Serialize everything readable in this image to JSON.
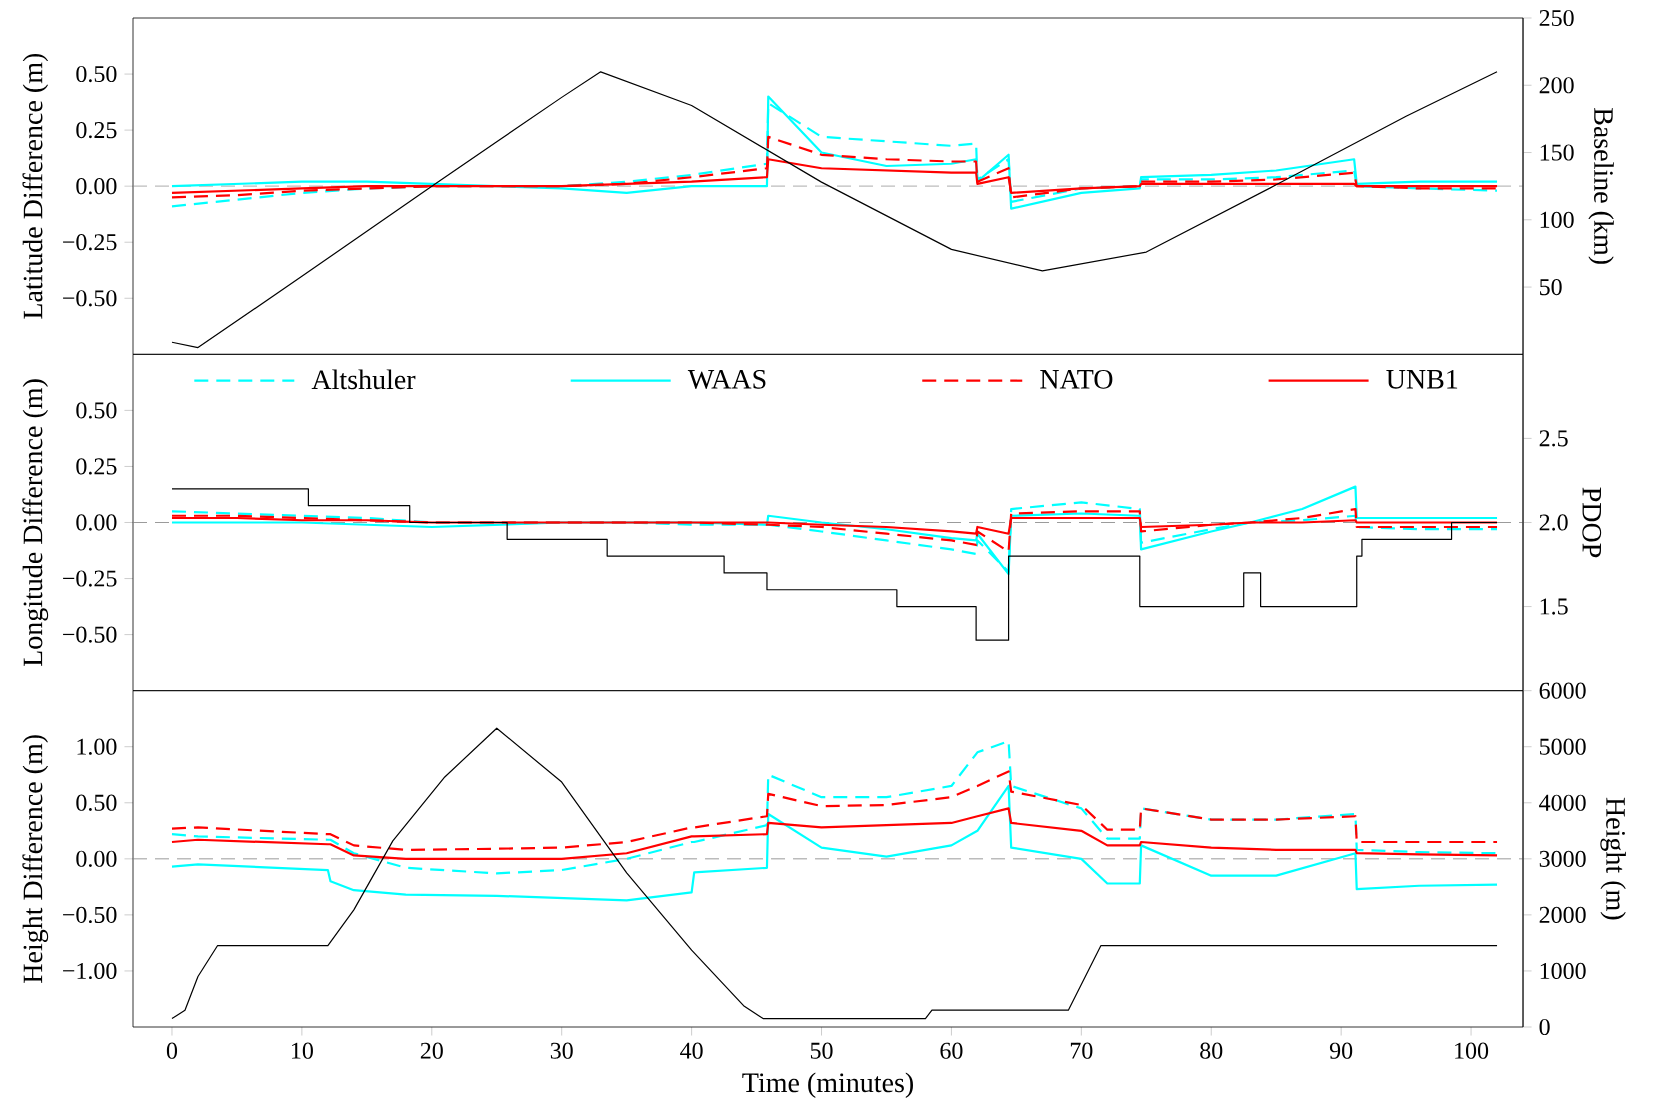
{
  "chart_data": [
    {
      "type": "line",
      "ylabel": "Latitude Difference (m)",
      "y2label": "Baseline (km)",
      "tick_labels": "y",
      "xlim": [
        -3,
        104
      ],
      "ylim": [
        -0.75,
        0.75
      ],
      "yticks": [
        {
          "value": -0.5,
          "label": "−0.50"
        },
        {
          "value": -0.25,
          "label": "−0.25"
        },
        {
          "value": 0,
          "label": "0.00"
        },
        {
          "value": 0.25,
          "label": "0.25"
        },
        {
          "value": 0.5,
          "label": "0.50"
        }
      ],
      "y2lim": [
        0,
        250
      ],
      "y2ticks": [
        50,
        100,
        150,
        200,
        250
      ],
      "ref_lines": [
        {
          "axis": "y",
          "value": 0,
          "color": "#808080",
          "line_style": "dashed"
        }
      ],
      "series": [
        {
          "color": "#00ffff",
          "line_style": "dashed",
          "x": [
            0,
            5,
            10,
            15,
            20,
            25,
            30,
            35,
            40,
            45.8,
            45.9,
            50,
            55,
            60,
            61.9,
            62,
            64.4,
            64.6,
            70,
            74.5,
            74.6,
            80,
            85,
            91,
            91.2,
            96,
            102
          ],
          "values": [
            -0.09,
            -0.06,
            -0.03,
            -0.01,
            0,
            0,
            0,
            0.02,
            0.05,
            0.1,
            0.37,
            0.22,
            0.2,
            0.18,
            0.19,
            0.03,
            0.12,
            -0.07,
            -0.01,
            0,
            0.03,
            0.03,
            0.04,
            0.07,
            0,
            -0.01,
            -0.02
          ]
        },
        {
          "color": "#00ffff",
          "line_style": "solid",
          "x": [
            0,
            5,
            10,
            15,
            20,
            25,
            30,
            35,
            40,
            45.8,
            45.9,
            50,
            55,
            60,
            61.9,
            62,
            64.4,
            64.6,
            70,
            74.5,
            74.6,
            80,
            85,
            91,
            91.2,
            96,
            102
          ],
          "values": [
            0,
            0.01,
            0.02,
            0.02,
            0.01,
            0,
            -0.01,
            -0.03,
            0,
            0,
            0.4,
            0.15,
            0.09,
            0.1,
            0.12,
            0.02,
            0.14,
            -0.1,
            -0.03,
            -0.01,
            0.04,
            0.05,
            0.07,
            0.12,
            0.01,
            0.02,
            0.02
          ]
        },
        {
          "color": "#ff0000",
          "line_style": "dashed",
          "x": [
            0,
            5,
            10,
            15,
            20,
            25,
            30,
            35,
            40,
            45.8,
            45.9,
            50,
            55,
            60,
            61.9,
            62,
            64.4,
            64.6,
            70,
            74.5,
            74.6,
            80,
            85,
            91,
            91.2,
            96,
            102
          ],
          "values": [
            -0.05,
            -0.04,
            -0.02,
            -0.01,
            0,
            0,
            0,
            0.01,
            0.04,
            0.08,
            0.22,
            0.14,
            0.12,
            0.11,
            0.11,
            0.02,
            0.08,
            -0.05,
            -0.01,
            0,
            0.02,
            0.02,
            0.03,
            0.06,
            0,
            -0.01,
            -0.01
          ]
        },
        {
          "color": "#ff0000",
          "line_style": "solid",
          "x": [
            0,
            5,
            10,
            15,
            20,
            25,
            30,
            35,
            40,
            45.8,
            45.9,
            50,
            55,
            60,
            61.9,
            62,
            64.4,
            64.6,
            70,
            74.5,
            74.6,
            80,
            85,
            91,
            91.2,
            96,
            102
          ],
          "values": [
            -0.03,
            -0.02,
            -0.01,
            0,
            0,
            0,
            0,
            0.01,
            0.02,
            0.04,
            0.12,
            0.08,
            0.07,
            0.06,
            0.06,
            0.01,
            0.04,
            -0.03,
            -0.01,
            0,
            0.01,
            0.01,
            0.01,
            0.01,
            0,
            0,
            0
          ]
        },
        {
          "color": "#000000",
          "line_style": "solid",
          "axis": "y2",
          "x": [
            0,
            2,
            10,
            20,
            25,
            30,
            33,
            40,
            50,
            60,
            67,
            75,
            85,
            95,
            102
          ],
          "values": [
            9,
            5,
            58,
            125,
            158,
            191,
            210,
            185,
            128,
            78,
            62,
            76,
            126,
            177,
            210
          ]
        }
      ]
    },
    {
      "type": "line",
      "ylabel": "Longitude Difference (m)",
      "y2label": "PDOP",
      "tick_labels": "y",
      "legend": "top",
      "xlim": [
        -3,
        104
      ],
      "ylim": [
        -0.75,
        0.75
      ],
      "yticks": [
        {
          "value": -0.5,
          "label": "−0.50"
        },
        {
          "value": -0.25,
          "label": "−0.25"
        },
        {
          "value": 0,
          "label": "0.00"
        },
        {
          "value": 0.25,
          "label": "0.25"
        },
        {
          "value": 0.5,
          "label": "0.50"
        }
      ],
      "y2lim": [
        1,
        3
      ],
      "y2ticks": [
        1.5,
        {
          "value": 2,
          "label": "2.0"
        },
        2.5
      ],
      "ref_lines": [
        {
          "axis": "y",
          "value": 0,
          "color": "#808080",
          "line_style": "dashed"
        }
      ],
      "series": [
        {
          "name": "Altshuler",
          "color": "#00ffff",
          "line_style": "dashed",
          "x": [
            0,
            5,
            10,
            15,
            20,
            25,
            30,
            35,
            40,
            45.8,
            45.9,
            50,
            55,
            60,
            61.9,
            62,
            64.4,
            64.6,
            70,
            74.5,
            74.6,
            80,
            83,
            87,
            91.1,
            91.2,
            96,
            102
          ],
          "values": [
            0.05,
            0.04,
            0.03,
            0.02,
            0,
            0,
            0,
            0,
            -0.01,
            -0.01,
            -0.01,
            -0.04,
            -0.08,
            -0.12,
            -0.14,
            -0.08,
            -0.22,
            0.06,
            0.09,
            0.06,
            -0.09,
            -0.03,
            0,
            0.01,
            0.03,
            -0.02,
            -0.03,
            -0.03
          ]
        },
        {
          "name": "WAAS",
          "color": "#00ffff",
          "line_style": "solid",
          "x": [
            0,
            5,
            10,
            15,
            20,
            25,
            30,
            35,
            40,
            45.8,
            45.9,
            50,
            55,
            60,
            61.9,
            62,
            64.4,
            64.6,
            70,
            74.5,
            74.6,
            80,
            83,
            87,
            91.1,
            91.2,
            96,
            102
          ],
          "values": [
            0,
            0,
            0,
            -0.01,
            -0.02,
            -0.01,
            0,
            0,
            0,
            -0.01,
            0.03,
            0,
            -0.03,
            -0.07,
            -0.08,
            -0.05,
            -0.23,
            0.03,
            0.04,
            0.03,
            -0.12,
            -0.04,
            0,
            0.06,
            0.16,
            0.02,
            0.02,
            0.02
          ]
        },
        {
          "name": "NATO",
          "color": "#ff0000",
          "line_style": "dashed",
          "x": [
            0,
            5,
            10,
            15,
            20,
            25,
            30,
            35,
            40,
            45.8,
            45.9,
            50,
            55,
            60,
            61.9,
            62,
            64.4,
            64.6,
            70,
            74.5,
            74.6,
            80,
            83,
            87,
            91.1,
            91.2,
            96,
            102
          ],
          "values": [
            0.03,
            0.03,
            0.02,
            0.01,
            0,
            0,
            0,
            0,
            0,
            -0.01,
            -0.01,
            -0.02,
            -0.05,
            -0.08,
            -0.1,
            -0.04,
            -0.13,
            0.04,
            0.05,
            0.05,
            -0.04,
            -0.01,
            0,
            0.02,
            0.06,
            -0.02,
            -0.02,
            -0.02
          ]
        },
        {
          "name": "UNB1",
          "color": "#ff0000",
          "line_style": "solid",
          "x": [
            0,
            5,
            10,
            15,
            20,
            25,
            30,
            35,
            40,
            45.8,
            45.9,
            50,
            55,
            60,
            61.9,
            62,
            64.4,
            64.6,
            70,
            74.5,
            74.6,
            80,
            83,
            87,
            91.1,
            91.2,
            96,
            102
          ],
          "values": [
            0.02,
            0.02,
            0.01,
            0.01,
            0,
            0,
            0,
            0,
            0,
            0,
            0,
            -0.01,
            -0.02,
            -0.04,
            -0.05,
            -0.02,
            -0.05,
            0.02,
            0.02,
            0.02,
            -0.02,
            -0.01,
            0,
            0,
            0.01,
            0,
            0,
            0
          ]
        },
        {
          "type": "step",
          "color": "#000000",
          "line_style": "solid",
          "axis": "y2",
          "x": [
            0,
            10.5,
            18.3,
            25.8,
            33.5,
            42.5,
            45.8,
            55.8,
            61.9,
            64.4,
            74.5,
            82.5,
            83.8,
            91.2,
            91.6,
            98.5,
            102
          ],
          "values": [
            2.2,
            2.1,
            2.0,
            1.9,
            1.8,
            1.7,
            1.6,
            1.5,
            1.3,
            1.8,
            1.5,
            1.7,
            1.5,
            1.8,
            1.9,
            2.0,
            2.0
          ]
        }
      ]
    },
    {
      "type": "line",
      "xlabel": "Time (minutes)",
      "ylabel": "Height Difference (m)",
      "y2label": "Height (m)",
      "xlim": [
        -3,
        104
      ],
      "xticks": [
        0,
        10,
        20,
        30,
        40,
        50,
        60,
        70,
        80,
        90,
        100
      ],
      "ylim": [
        -1.5,
        1.5
      ],
      "yticks": [
        {
          "value": -1,
          "label": "−1.00"
        },
        {
          "value": -0.5,
          "label": "−0.50"
        },
        {
          "value": 0,
          "label": "0.00"
        },
        {
          "value": 0.5,
          "label": "0.50"
        },
        {
          "value": 1,
          "label": "1.00"
        }
      ],
      "y2lim": [
        0,
        6000
      ],
      "y2ticks": [
        0,
        1000,
        2000,
        3000,
        4000,
        5000,
        6000
      ],
      "ref_lines": [
        {
          "axis": "y",
          "value": 0,
          "color": "#808080",
          "line_style": "dashed"
        }
      ],
      "series": [
        {
          "color": "#00ffff",
          "line_style": "dashed",
          "x": [
            0,
            2,
            12,
            12.2,
            14,
            18,
            25,
            30,
            35,
            40,
            40.2,
            45.8,
            45.9,
            50,
            55,
            60,
            62,
            64.4,
            64.6,
            70,
            72,
            74.5,
            74.6,
            80,
            85,
            91.1,
            91.2,
            96,
            102
          ],
          "values": [
            0.22,
            0.2,
            0.17,
            0.17,
            0.05,
            -0.08,
            -0.13,
            -0.1,
            0,
            0.15,
            0.15,
            0.3,
            0.75,
            0.55,
            0.55,
            0.65,
            0.95,
            1.05,
            0.65,
            0.45,
            0.18,
            0.18,
            0.45,
            0.35,
            0.35,
            0.4,
            0.08,
            0.06,
            0.05
          ]
        },
        {
          "color": "#00ffff",
          "line_style": "solid",
          "x": [
            0,
            2,
            12,
            12.2,
            14,
            18,
            25,
            30,
            35,
            40,
            40.2,
            45.8,
            45.9,
            50,
            55,
            60,
            62,
            64.4,
            64.6,
            70,
            72,
            74.5,
            74.6,
            80,
            85,
            91.1,
            91.2,
            96,
            102
          ],
          "values": [
            -0.07,
            -0.05,
            -0.1,
            -0.2,
            -0.28,
            -0.32,
            -0.33,
            -0.35,
            -0.37,
            -0.3,
            -0.12,
            -0.08,
            0.4,
            0.1,
            0.02,
            0.12,
            0.25,
            0.65,
            0.1,
            0,
            -0.22,
            -0.22,
            0.12,
            -0.15,
            -0.15,
            0.05,
            -0.27,
            -0.24,
            -0.23
          ]
        },
        {
          "color": "#ff0000",
          "line_style": "dashed",
          "x": [
            0,
            2,
            12,
            12.2,
            14,
            18,
            25,
            30,
            35,
            40,
            40.2,
            45.8,
            45.9,
            50,
            55,
            60,
            62,
            64.4,
            64.6,
            70,
            72,
            74.5,
            74.6,
            80,
            85,
            91.1,
            91.2,
            96,
            102
          ],
          "values": [
            0.27,
            0.28,
            0.22,
            0.22,
            0.12,
            0.08,
            0.09,
            0.1,
            0.15,
            0.28,
            0.28,
            0.38,
            0.58,
            0.47,
            0.48,
            0.55,
            0.65,
            0.78,
            0.6,
            0.48,
            0.26,
            0.26,
            0.45,
            0.35,
            0.35,
            0.38,
            0.15,
            0.15,
            0.15
          ]
        },
        {
          "color": "#ff0000",
          "line_style": "solid",
          "x": [
            0,
            2,
            12,
            12.2,
            14,
            18,
            25,
            30,
            35,
            40,
            40.2,
            45.8,
            45.9,
            50,
            55,
            60,
            62,
            64.4,
            64.6,
            70,
            72,
            74.5,
            74.6,
            80,
            85,
            91.1,
            91.2,
            96,
            102
          ],
          "values": [
            0.15,
            0.17,
            0.13,
            0.13,
            0.03,
            0,
            0,
            0,
            0.05,
            0.2,
            0.2,
            0.22,
            0.32,
            0.28,
            0.3,
            0.32,
            0.38,
            0.45,
            0.32,
            0.25,
            0.12,
            0.12,
            0.15,
            0.1,
            0.08,
            0.08,
            0.05,
            0.04,
            0.03
          ]
        },
        {
          "color": "#000000",
          "line_style": "solid",
          "axis": "y2",
          "x": [
            0,
            1,
            2,
            3.5,
            12,
            14,
            17,
            21,
            25,
            30,
            35,
            40,
            44,
            45.5,
            58,
            58.5,
            69,
            71.5,
            102
          ],
          "values": [
            150,
            300,
            900,
            1450,
            1450,
            2090,
            3320,
            4460,
            5330,
            4370,
            2750,
            1370,
            380,
            150,
            150,
            300,
            300,
            1450,
            1450
          ]
        }
      ]
    }
  ]
}
